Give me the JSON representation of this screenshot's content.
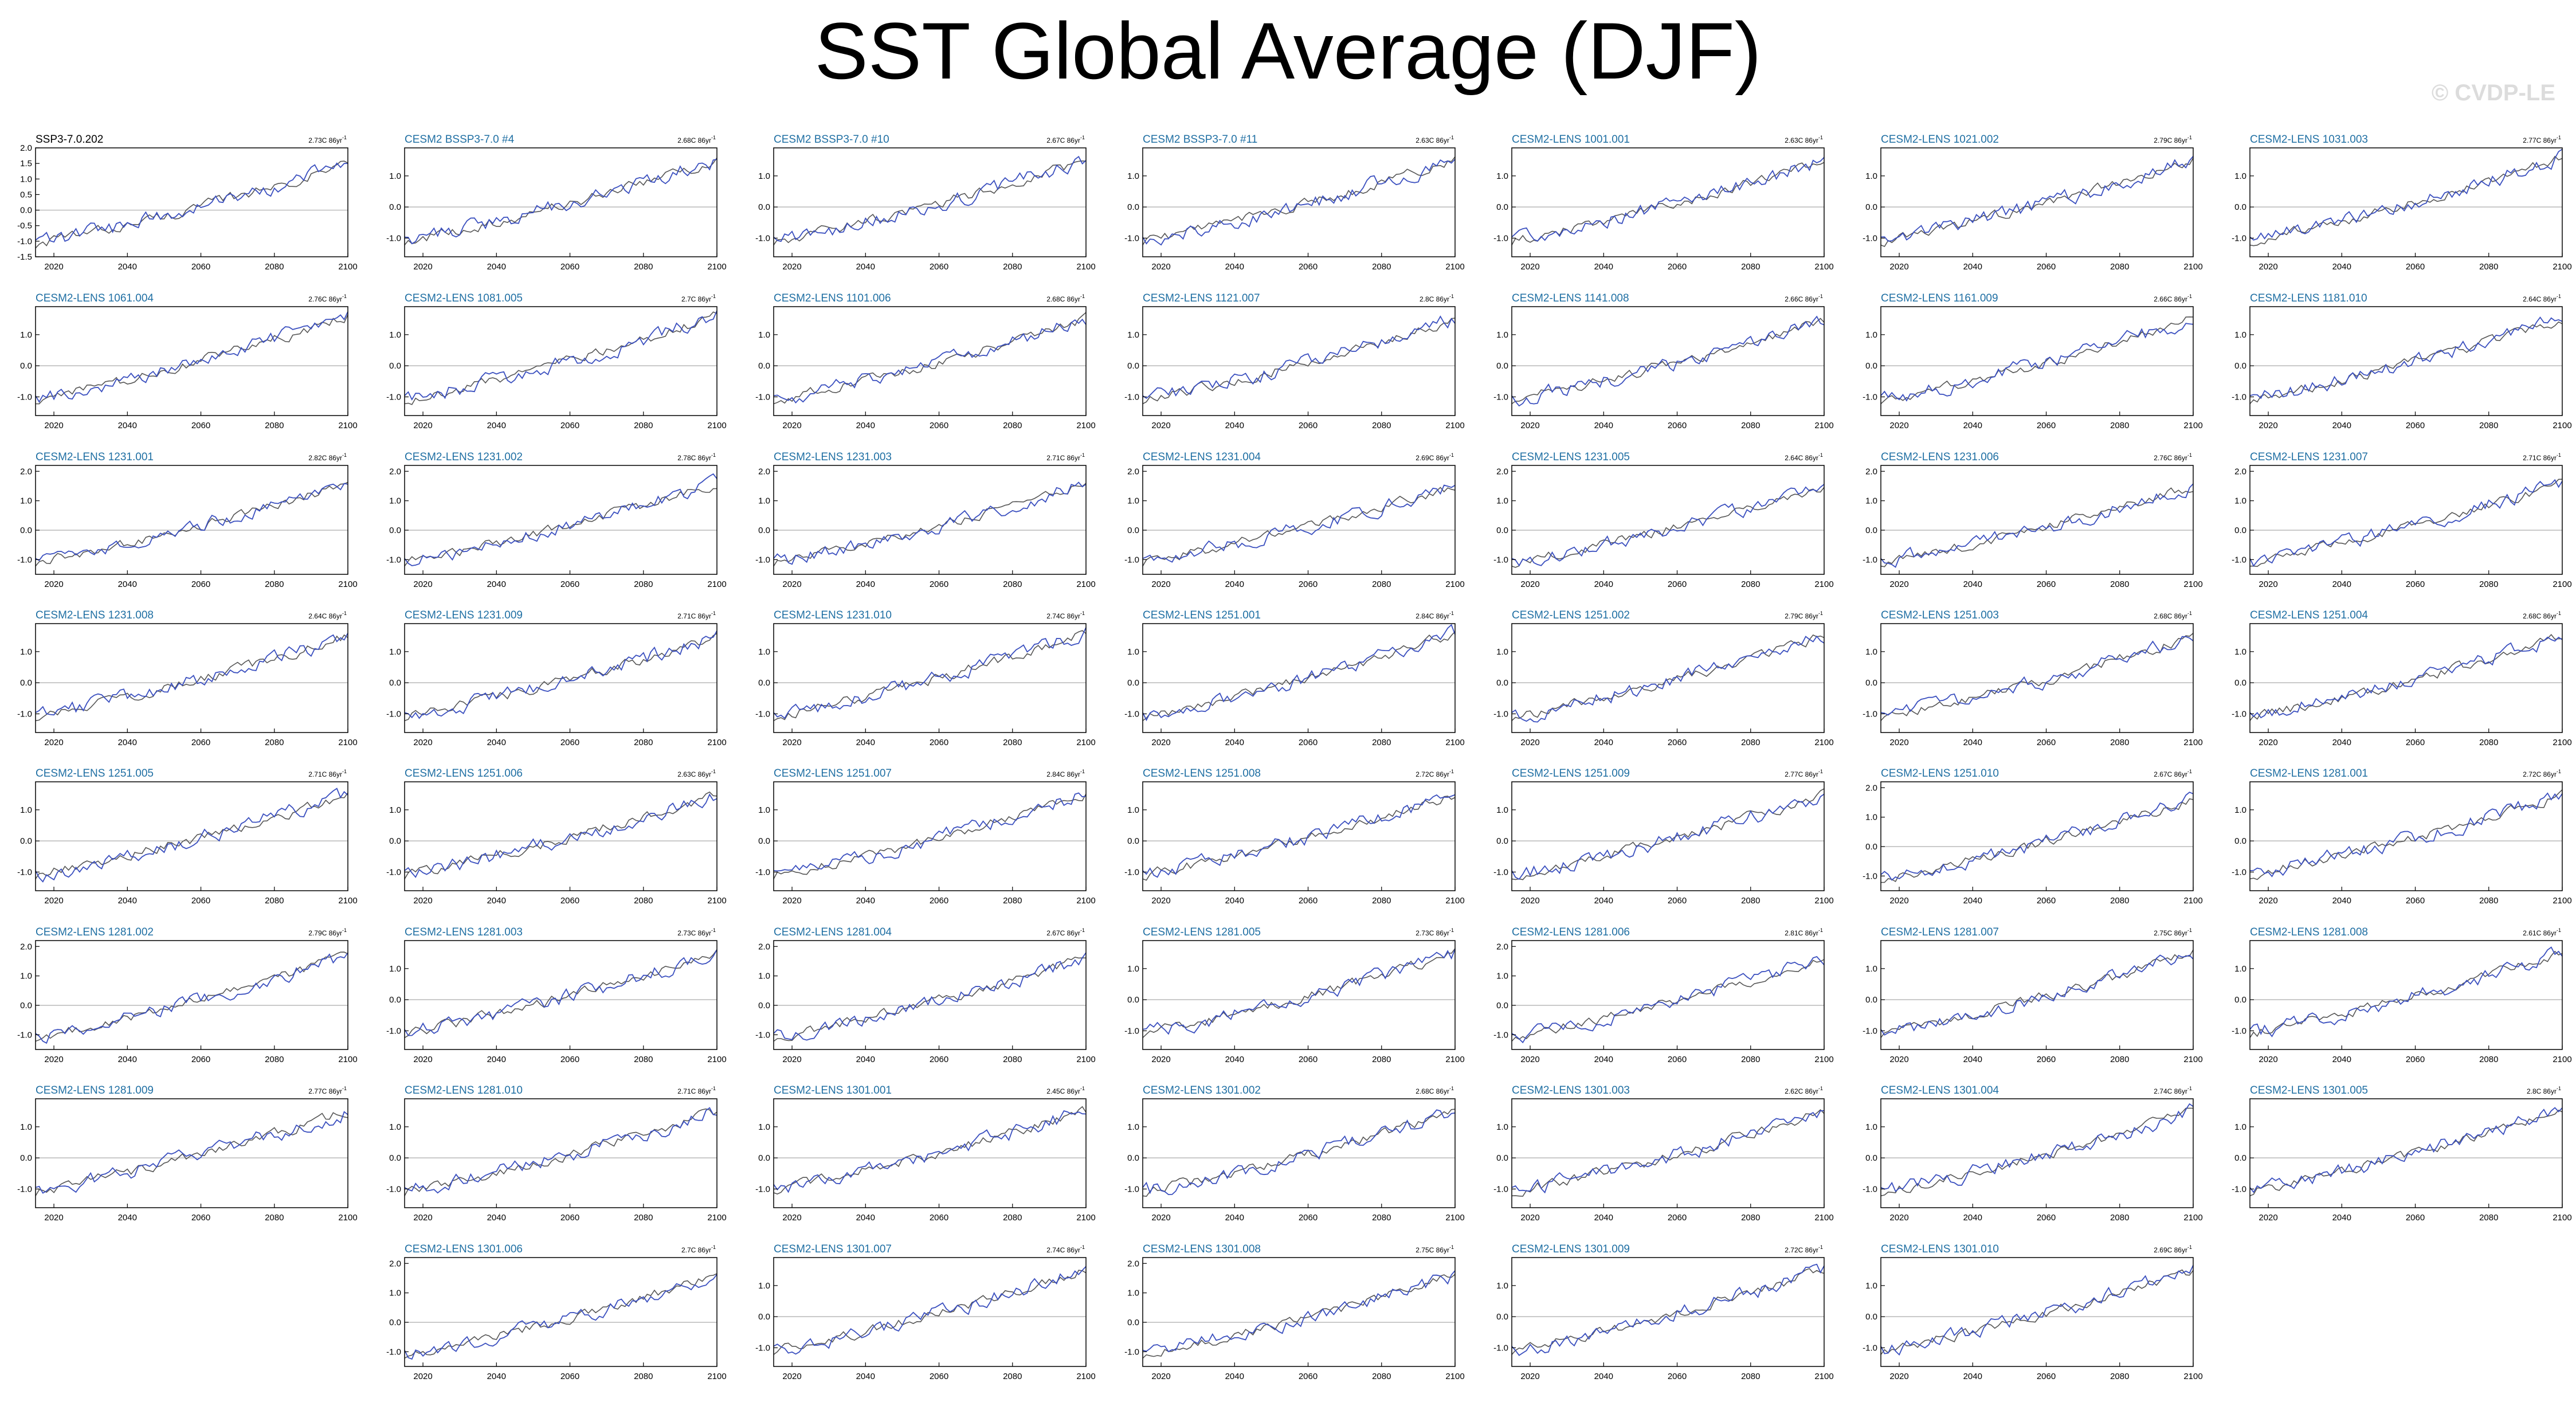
{
  "title": "SST Global Average (DJF)",
  "watermark": "© CVDP-LE",
  "chart_data": {
    "type": "line",
    "title": "SST Global Average (DJF)",
    "xlim": [
      2015,
      2100
    ],
    "x_ticks": [
      2020,
      2040,
      2060,
      2080,
      2100
    ],
    "series_colors": {
      "member": "#3a4fbf",
      "ensemble_mean": "#555555"
    },
    "axis_title_colors": {
      "observation": "#000000",
      "model": "#1f6fa3"
    },
    "panels": [
      {
        "name": "SSP3-7.0.202",
        "trend": "2.73C 86yr",
        "ylim": [
          -1.5,
          2.0
        ],
        "yticks": [
          "2.0",
          "1.5",
          "1.0",
          "0.5",
          "0.0",
          "-0.5",
          "-1.0",
          "-1.5"
        ],
        "yvals": [
          2.0,
          1.5,
          1.0,
          0.5,
          0.0,
          -0.5,
          -1.0,
          -1.5
        ],
        "start": -1.1,
        "end": 1.5,
        "title_color": "#000000"
      },
      {
        "name": "CESM2 BSSP3-7.0 #4",
        "trend": "2.68C 86yr",
        "ylim": [
          -1.6,
          1.9
        ],
        "yticks": [
          "1.0",
          "0.0",
          "-1.0"
        ],
        "yvals": [
          1,
          0,
          -1
        ],
        "start": -1.1,
        "end": 1.5
      },
      {
        "name": "CESM2 BSSP3-7.0 #10",
        "trend": "2.67C 86yr",
        "ylim": [
          -1.6,
          1.9
        ],
        "yticks": [
          "1.0",
          "0.0",
          "-1.0"
        ],
        "yvals": [
          1,
          0,
          -1
        ],
        "start": -1.1,
        "end": 1.5
      },
      {
        "name": "CESM2 BSSP3-7.0 #11",
        "trend": "2.63C 86yr",
        "ylim": [
          -1.6,
          1.9
        ],
        "yticks": [
          "1.0",
          "0.0",
          "-1.0"
        ],
        "yvals": [
          1,
          0,
          -1
        ],
        "start": -1.1,
        "end": 1.5
      },
      {
        "name": "CESM2-LENS 1001.001",
        "trend": "2.63C 86yr",
        "ylim": [
          -1.6,
          1.9
        ],
        "yticks": [
          "1.0",
          "0.0",
          "-1.0"
        ],
        "yvals": [
          1,
          0,
          -1
        ],
        "start": -1.1,
        "end": 1.5
      },
      {
        "name": "CESM2-LENS 1021.002",
        "trend": "2.79C 86yr",
        "ylim": [
          -1.6,
          1.9
        ],
        "yticks": [
          "1.0",
          "0.0",
          "-1.0"
        ],
        "yvals": [
          1,
          0,
          -1
        ],
        "start": -1.1,
        "end": 1.5
      },
      {
        "name": "CESM2-LENS 1031.003",
        "trend": "2.77C 86yr",
        "ylim": [
          -1.6,
          1.9
        ],
        "yticks": [
          "1.0",
          "0.0",
          "-1.0"
        ],
        "yvals": [
          1,
          0,
          -1
        ],
        "start": -1.1,
        "end": 1.6
      },
      {
        "name": "CESM2-LENS 1061.004",
        "trend": "2.76C 86yr",
        "ylim": [
          -1.6,
          1.9
        ],
        "yticks": [
          "1.0",
          "0.0",
          "-1.0"
        ],
        "yvals": [
          1,
          0,
          -1
        ],
        "start": -1.1,
        "end": 1.6
      },
      {
        "name": "CESM2-LENS 1081.005",
        "trend": "2.7C 86yr",
        "ylim": [
          -1.6,
          1.9
        ],
        "yticks": [
          "1.0",
          "0.0",
          "-1.0"
        ],
        "yvals": [
          1,
          0,
          -1
        ],
        "start": -1.1,
        "end": 1.6
      },
      {
        "name": "CESM2-LENS 1101.006",
        "trend": "2.68C 86yr",
        "ylim": [
          -1.6,
          1.9
        ],
        "yticks": [
          "1.0",
          "0.0",
          "-1.0"
        ],
        "yvals": [
          1,
          0,
          -1
        ],
        "start": -1.1,
        "end": 1.5
      },
      {
        "name": "CESM2-LENS 1121.007",
        "trend": "2.8C 86yr",
        "ylim": [
          -1.6,
          1.9
        ],
        "yticks": [
          "1.0",
          "0.0",
          "-1.0"
        ],
        "yvals": [
          1,
          0,
          -1
        ],
        "start": -1.1,
        "end": 1.5
      },
      {
        "name": "CESM2-LENS 1141.008",
        "trend": "2.66C 86yr",
        "ylim": [
          -1.6,
          1.9
        ],
        "yticks": [
          "1.0",
          "0.0",
          "-1.0"
        ],
        "yvals": [
          1,
          0,
          -1
        ],
        "start": -1.1,
        "end": 1.5
      },
      {
        "name": "CESM2-LENS 1161.009",
        "trend": "2.66C 86yr",
        "ylim": [
          -1.6,
          1.9
        ],
        "yticks": [
          "1.0",
          "0.0",
          "-1.0"
        ],
        "yvals": [
          1,
          0,
          -1
        ],
        "start": -1.1,
        "end": 1.5
      },
      {
        "name": "CESM2-LENS 1181.010",
        "trend": "2.64C 86yr",
        "ylim": [
          -1.6,
          1.9
        ],
        "yticks": [
          "1.0",
          "0.0",
          "-1.0"
        ],
        "yvals": [
          1,
          0,
          -1
        ],
        "start": -1.1,
        "end": 1.5
      },
      {
        "name": "CESM2-LENS 1231.001",
        "trend": "2.82C 86yr",
        "ylim": [
          -1.5,
          2.2
        ],
        "yticks": [
          "2.0",
          "1.0",
          "0.0",
          "-1.0"
        ],
        "yvals": [
          2,
          1,
          0,
          -1
        ],
        "start": -1.1,
        "end": 1.6
      },
      {
        "name": "CESM2-LENS 1231.002",
        "trend": "2.78C 86yr",
        "ylim": [
          -1.5,
          2.2
        ],
        "yticks": [
          "2.0",
          "1.0",
          "0.0",
          "-1.0"
        ],
        "yvals": [
          2,
          1,
          0,
          -1
        ],
        "start": -1.1,
        "end": 1.6
      },
      {
        "name": "CESM2-LENS 1231.003",
        "trend": "2.71C 86yr",
        "ylim": [
          -1.5,
          2.2
        ],
        "yticks": [
          "2.0",
          "1.0",
          "0.0",
          "-1.0"
        ],
        "yvals": [
          2,
          1,
          0,
          -1
        ],
        "start": -1.1,
        "end": 1.6
      },
      {
        "name": "CESM2-LENS 1231.004",
        "trend": "2.69C 86yr",
        "ylim": [
          -1.5,
          2.2
        ],
        "yticks": [
          "2.0",
          "1.0",
          "0.0",
          "-1.0"
        ],
        "yvals": [
          2,
          1,
          0,
          -1
        ],
        "start": -1.1,
        "end": 1.5
      },
      {
        "name": "CESM2-LENS 1231.005",
        "trend": "2.64C 86yr",
        "ylim": [
          -1.5,
          2.2
        ],
        "yticks": [
          "2.0",
          "1.0",
          "0.0",
          "-1.0"
        ],
        "yvals": [
          2,
          1,
          0,
          -1
        ],
        "start": -1.1,
        "end": 1.5
      },
      {
        "name": "CESM2-LENS 1231.006",
        "trend": "2.76C 86yr",
        "ylim": [
          -1.5,
          2.2
        ],
        "yticks": [
          "2.0",
          "1.0",
          "0.0",
          "-1.0"
        ],
        "yvals": [
          2,
          1,
          0,
          -1
        ],
        "start": -1.1,
        "end": 1.5
      },
      {
        "name": "CESM2-LENS 1231.007",
        "trend": "2.71C 86yr",
        "ylim": [
          -1.5,
          2.2
        ],
        "yticks": [
          "2.0",
          "1.0",
          "0.0",
          "-1.0"
        ],
        "yvals": [
          2,
          1,
          0,
          -1
        ],
        "start": -1.1,
        "end": 1.6
      },
      {
        "name": "CESM2-LENS 1231.008",
        "trend": "2.64C 86yr",
        "ylim": [
          -1.6,
          1.9
        ],
        "yticks": [
          "1.0",
          "0.0",
          "-1.0"
        ],
        "yvals": [
          1,
          0,
          -1
        ],
        "start": -1.1,
        "end": 1.5
      },
      {
        "name": "CESM2-LENS 1231.009",
        "trend": "2.71C 86yr",
        "ylim": [
          -1.6,
          1.9
        ],
        "yticks": [
          "1.0",
          "0.0",
          "-1.0"
        ],
        "yvals": [
          1,
          0,
          -1
        ],
        "start": -1.1,
        "end": 1.5
      },
      {
        "name": "CESM2-LENS 1231.010",
        "trend": "2.74C 86yr",
        "ylim": [
          -1.6,
          1.9
        ],
        "yticks": [
          "1.0",
          "0.0",
          "-1.0"
        ],
        "yvals": [
          1,
          0,
          -1
        ],
        "start": -1.1,
        "end": 1.6
      },
      {
        "name": "CESM2-LENS 1251.001",
        "trend": "2.84C 86yr",
        "ylim": [
          -1.6,
          1.9
        ],
        "yticks": [
          "1.0",
          "0.0",
          "-1.0"
        ],
        "yvals": [
          1,
          0,
          -1
        ],
        "start": -1.1,
        "end": 1.6
      },
      {
        "name": "CESM2-LENS 1251.002",
        "trend": "2.79C 86yr",
        "ylim": [
          -1.6,
          1.9
        ],
        "yticks": [
          "1.0",
          "0.0",
          "-1.0"
        ],
        "yvals": [
          1,
          0,
          -1
        ],
        "start": -1.1,
        "end": 1.5
      },
      {
        "name": "CESM2-LENS 1251.003",
        "trend": "2.68C 86yr",
        "ylim": [
          -1.6,
          1.9
        ],
        "yticks": [
          "1.0",
          "0.0",
          "-1.0"
        ],
        "yvals": [
          1,
          0,
          -1
        ],
        "start": -1.1,
        "end": 1.5
      },
      {
        "name": "CESM2-LENS 1251.004",
        "trend": "2.68C 86yr",
        "ylim": [
          -1.6,
          1.9
        ],
        "yticks": [
          "1.0",
          "0.0",
          "-1.0"
        ],
        "yvals": [
          1,
          0,
          -1
        ],
        "start": -1.1,
        "end": 1.5
      },
      {
        "name": "CESM2-LENS 1251.005",
        "trend": "2.71C 86yr",
        "ylim": [
          -1.6,
          1.9
        ],
        "yticks": [
          "1.0",
          "0.0",
          "-1.0"
        ],
        "yvals": [
          1,
          0,
          -1
        ],
        "start": -1.1,
        "end": 1.5
      },
      {
        "name": "CESM2-LENS 1251.006",
        "trend": "2.63C 86yr",
        "ylim": [
          -1.6,
          1.9
        ],
        "yticks": [
          "1.0",
          "0.0",
          "-1.0"
        ],
        "yvals": [
          1,
          0,
          -1
        ],
        "start": -1.1,
        "end": 1.5
      },
      {
        "name": "CESM2-LENS 1251.007",
        "trend": "2.84C 86yr",
        "ylim": [
          -1.6,
          1.9
        ],
        "yticks": [
          "1.0",
          "0.0",
          "-1.0"
        ],
        "yvals": [
          1,
          0,
          -1
        ],
        "start": -1.1,
        "end": 1.5
      },
      {
        "name": "CESM2-LENS 1251.008",
        "trend": "2.72C 86yr",
        "ylim": [
          -1.6,
          1.9
        ],
        "yticks": [
          "1.0",
          "0.0",
          "-1.0"
        ],
        "yvals": [
          1,
          0,
          -1
        ],
        "start": -1.1,
        "end": 1.5
      },
      {
        "name": "CESM2-LENS 1251.009",
        "trend": "2.77C 86yr",
        "ylim": [
          -1.6,
          1.9
        ],
        "yticks": [
          "1.0",
          "0.0",
          "-1.0"
        ],
        "yvals": [
          1,
          0,
          -1
        ],
        "start": -1.1,
        "end": 1.5
      },
      {
        "name": "CESM2-LENS 1251.010",
        "trend": "2.67C 86yr",
        "ylim": [
          -1.5,
          2.2
        ],
        "yticks": [
          "2.0",
          "1.0",
          "0.0",
          "-1.0"
        ],
        "yvals": [
          2,
          1,
          0,
          -1
        ],
        "start": -1.1,
        "end": 1.6
      },
      {
        "name": "CESM2-LENS 1281.001",
        "trend": "2.72C 86yr",
        "ylim": [
          -1.6,
          1.9
        ],
        "yticks": [
          "1.0",
          "0.0",
          "-1.0"
        ],
        "yvals": [
          1,
          0,
          -1
        ],
        "start": -1.1,
        "end": 1.5
      },
      {
        "name": "CESM2-LENS 1281.002",
        "trend": "2.79C 86yr",
        "ylim": [
          -1.5,
          2.2
        ],
        "yticks": [
          "2.0",
          "1.0",
          "0.0",
          "-1.0"
        ],
        "yvals": [
          2,
          1,
          0,
          -1
        ],
        "start": -1.1,
        "end": 1.7
      },
      {
        "name": "CESM2-LENS 1281.003",
        "trend": "2.73C 86yr",
        "ylim": [
          -1.6,
          1.9
        ],
        "yticks": [
          "1.0",
          "0.0",
          "-1.0"
        ],
        "yvals": [
          1,
          0,
          -1
        ],
        "start": -1.1,
        "end": 1.5
      },
      {
        "name": "CESM2-LENS 1281.004",
        "trend": "2.67C 86yr",
        "ylim": [
          -1.5,
          2.2
        ],
        "yticks": [
          "2.0",
          "1.0",
          "0.0",
          "-1.0"
        ],
        "yvals": [
          2,
          1,
          0,
          -1
        ],
        "start": -1.1,
        "end": 1.6
      },
      {
        "name": "CESM2-LENS 1281.005",
        "trend": "2.73C 86yr",
        "ylim": [
          -1.6,
          1.9
        ],
        "yticks": [
          "1.0",
          "0.0",
          "-1.0"
        ],
        "yvals": [
          1,
          0,
          -1
        ],
        "start": -1.1,
        "end": 1.5
      },
      {
        "name": "CESM2-LENS 1281.006",
        "trend": "2.81C 86yr",
        "ylim": [
          -1.5,
          2.2
        ],
        "yticks": [
          "2.0",
          "1.0",
          "0.0",
          "-1.0"
        ],
        "yvals": [
          2,
          1,
          0,
          -1
        ],
        "start": -1.1,
        "end": 1.6
      },
      {
        "name": "CESM2-LENS 1281.007",
        "trend": "2.75C 86yr",
        "ylim": [
          -1.6,
          1.9
        ],
        "yticks": [
          "1.0",
          "0.0",
          "-1.0"
        ],
        "yvals": [
          1,
          0,
          -1
        ],
        "start": -1.1,
        "end": 1.5
      },
      {
        "name": "CESM2-LENS 1281.008",
        "trend": "2.61C 86yr",
        "ylim": [
          -1.6,
          1.9
        ],
        "yticks": [
          "1.0",
          "0.0",
          "-1.0"
        ],
        "yvals": [
          1,
          0,
          -1
        ],
        "start": -1.1,
        "end": 1.5
      },
      {
        "name": "CESM2-LENS 1281.009",
        "trend": "2.77C 86yr",
        "ylim": [
          -1.6,
          1.9
        ],
        "yticks": [
          "1.0",
          "0.0",
          "-1.0"
        ],
        "yvals": [
          1,
          0,
          -1
        ],
        "start": -1.1,
        "end": 1.5
      },
      {
        "name": "CESM2-LENS 1281.010",
        "trend": "2.71C 86yr",
        "ylim": [
          -1.6,
          1.9
        ],
        "yticks": [
          "1.0",
          "0.0",
          "-1.0"
        ],
        "yvals": [
          1,
          0,
          -1
        ],
        "start": -1.1,
        "end": 1.5
      },
      {
        "name": "CESM2-LENS 1301.001",
        "trend": "2.45C 86yr",
        "ylim": [
          -1.6,
          1.9
        ],
        "yticks": [
          "1.0",
          "0.0",
          "-1.0"
        ],
        "yvals": [
          1,
          0,
          -1
        ],
        "start": -1.0,
        "end": 1.5
      },
      {
        "name": "CESM2-LENS 1301.002",
        "trend": "2.68C 86yr",
        "ylim": [
          -1.6,
          1.9
        ],
        "yticks": [
          "1.0",
          "0.0",
          "-1.0"
        ],
        "yvals": [
          1,
          0,
          -1
        ],
        "start": -1.1,
        "end": 1.5
      },
      {
        "name": "CESM2-LENS 1301.003",
        "trend": "2.62C 86yr",
        "ylim": [
          -1.6,
          1.9
        ],
        "yticks": [
          "1.0",
          "0.0",
          "-1.0"
        ],
        "yvals": [
          1,
          0,
          -1
        ],
        "start": -1.1,
        "end": 1.5
      },
      {
        "name": "CESM2-LENS 1301.004",
        "trend": "2.74C 86yr",
        "ylim": [
          -1.6,
          1.9
        ],
        "yticks": [
          "1.0",
          "0.0",
          "-1.0"
        ],
        "yvals": [
          1,
          0,
          -1
        ],
        "start": -1.1,
        "end": 1.5
      },
      {
        "name": "CESM2-LENS 1301.005",
        "trend": "2.8C 86yr",
        "ylim": [
          -1.6,
          1.9
        ],
        "yticks": [
          "1.0",
          "0.0",
          "-1.0"
        ],
        "yvals": [
          1,
          0,
          -1
        ],
        "start": -1.1,
        "end": 1.6
      },
      {
        "name": "CESM2-LENS 1301.006",
        "trend": "2.7C 86yr",
        "ylim": [
          -1.5,
          2.2
        ],
        "yticks": [
          "2.0",
          "1.0",
          "0.0",
          "-1.0"
        ],
        "yvals": [
          2,
          1,
          0,
          -1
        ],
        "start": -1.1,
        "end": 1.6
      },
      {
        "name": "CESM2-LENS 1301.007",
        "trend": "2.74C 86yr",
        "ylim": [
          -1.6,
          1.9
        ],
        "yticks": [
          "1.0",
          "0.0",
          "-1.0"
        ],
        "yvals": [
          1,
          0,
          -1
        ],
        "start": -1.1,
        "end": 1.5
      },
      {
        "name": "CESM2-LENS 1301.008",
        "trend": "2.75C 86yr",
        "ylim": [
          -1.5,
          2.2
        ],
        "yticks": [
          "2.0",
          "1.0",
          "0.0",
          "-1.0"
        ],
        "yvals": [
          2,
          1,
          0,
          -1
        ],
        "start": -1.1,
        "end": 1.6
      },
      {
        "name": "CESM2-LENS 1301.009",
        "trend": "2.72C 86yr",
        "ylim": [
          -1.6,
          1.9
        ],
        "yticks": [
          "1.0",
          "0.0",
          "-1.0"
        ],
        "yvals": [
          1,
          0,
          -1
        ],
        "start": -1.1,
        "end": 1.5
      },
      {
        "name": "CESM2-LENS 1301.010",
        "trend": "2.69C 86yr",
        "ylim": [
          -1.6,
          1.9
        ],
        "yticks": [
          "1.0",
          "0.0",
          "-1.0"
        ],
        "yvals": [
          1,
          0,
          -1
        ],
        "start": -1.1,
        "end": 1.5
      }
    ]
  }
}
